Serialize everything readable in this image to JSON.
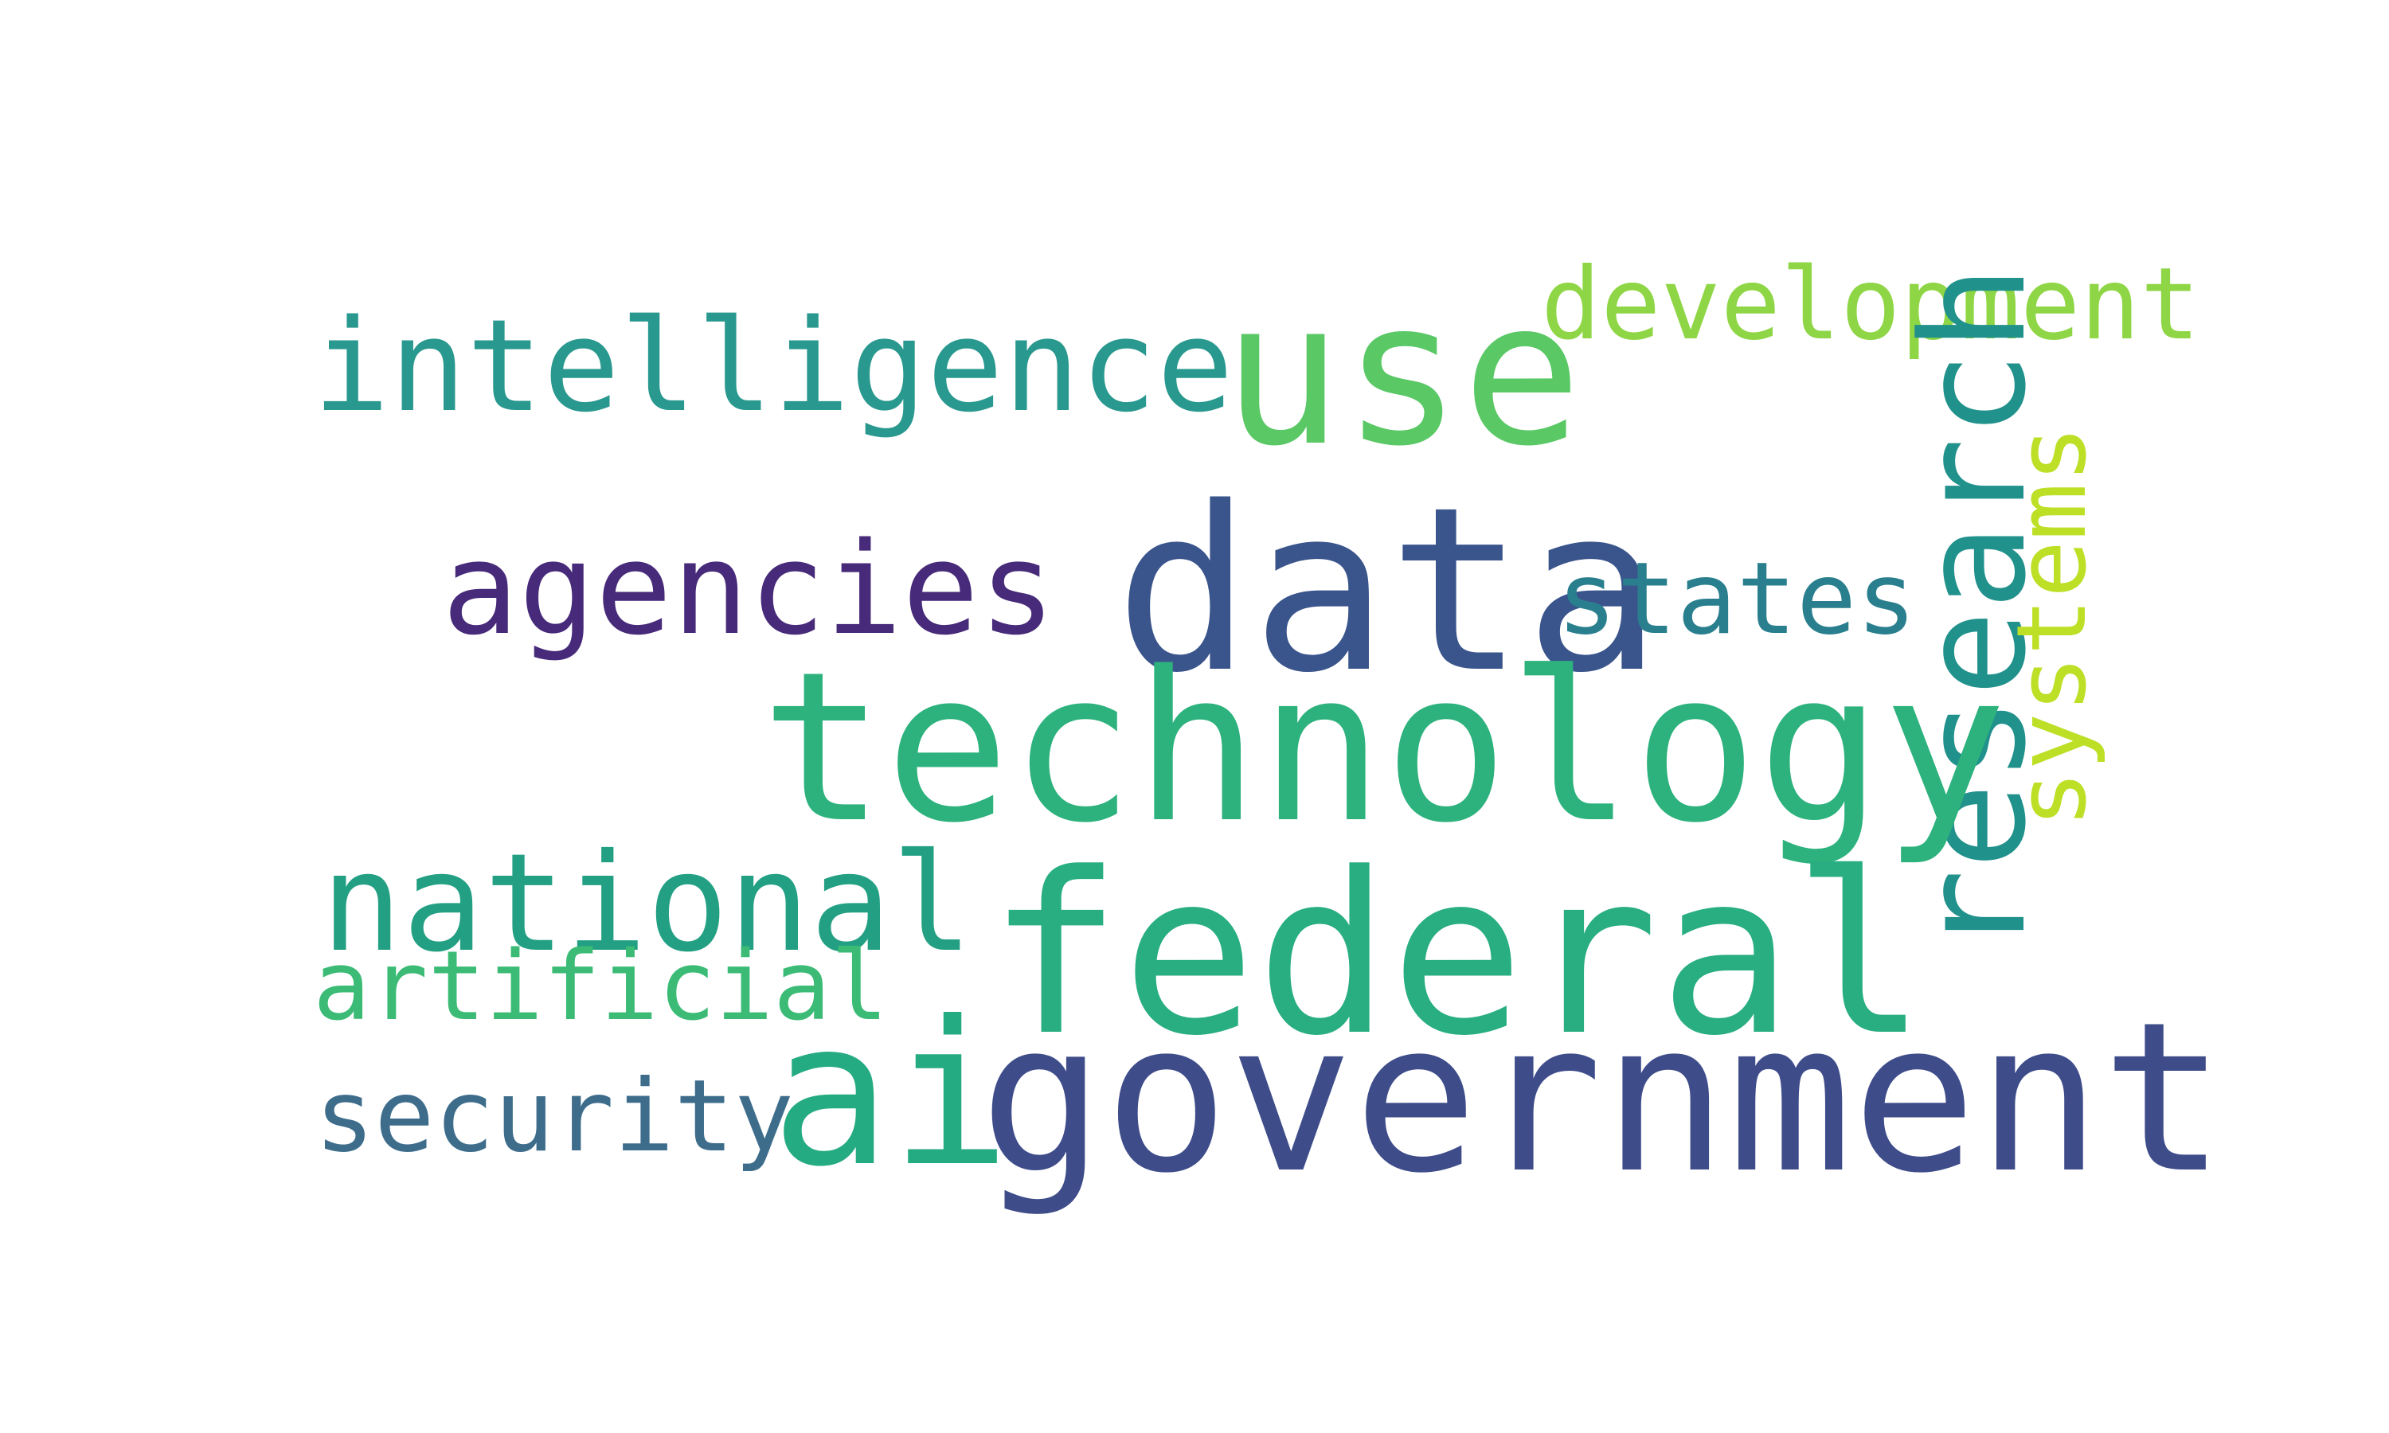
{
  "words": [
    {
      "text": "intelligence",
      "color": "#29988e"
    },
    {
      "text": "use",
      "color": "#59c865"
    },
    {
      "text": "development",
      "color": "#8ed645"
    },
    {
      "text": "agencies",
      "color": "#472a79"
    },
    {
      "text": "data",
      "color": "#3a548c"
    },
    {
      "text": "states",
      "color": "#2a7f8e"
    },
    {
      "text": "research",
      "color": "#21918c"
    },
    {
      "text": "systems",
      "color": "#bddf26"
    },
    {
      "text": "technology",
      "color": "#2db27d"
    },
    {
      "text": "national",
      "color": "#23a083"
    },
    {
      "text": "federal",
      "color": "#28ae80"
    },
    {
      "text": "artificial",
      "color": "#3bbb75"
    },
    {
      "text": "ai",
      "color": "#25ab81"
    },
    {
      "text": "government",
      "color": "#3e4c8a"
    },
    {
      "text": "security",
      "color": "#3e6d8c"
    }
  ]
}
